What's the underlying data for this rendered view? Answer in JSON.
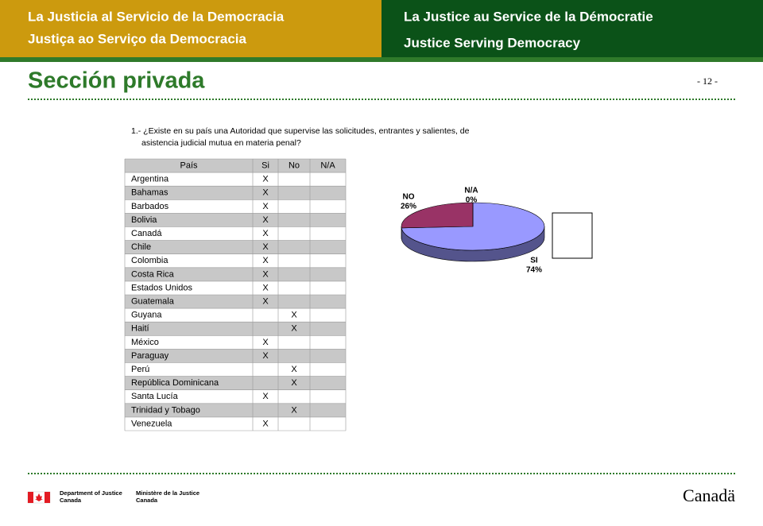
{
  "header": {
    "left": [
      "La Justicia al Servicio de la Democracia",
      "Justiça ao Serviço da Democracia"
    ],
    "right": [
      "La Justice au Service de la Démocratie",
      "Justice Serving Democracy"
    ]
  },
  "title": "Sección privada",
  "page_number": "- 12 -",
  "question": [
    "1.- ¿Existe en su país una Autoridad que supervise las solicitudes, entrantes y salientes, de",
    "asistencia judicial mutua en materia penal?"
  ],
  "table": {
    "columns": [
      "País",
      "Si",
      "No",
      "N/A"
    ],
    "rows": [
      [
        "Argentina",
        "X",
        null,
        null
      ],
      [
        "Bahamas",
        "X",
        null,
        null
      ],
      [
        "Barbados",
        "X",
        null,
        null
      ],
      [
        "Bolivia",
        "X",
        null,
        null
      ],
      [
        "Canadá",
        "X",
        null,
        null
      ],
      [
        "Chile",
        "X",
        null,
        null
      ],
      [
        "Colombia",
        "X",
        null,
        null
      ],
      [
        "Costa Rica",
        "X",
        null,
        null
      ],
      [
        "Estados Unidos",
        "X",
        null,
        null
      ],
      [
        "Guatemala",
        "X",
        null,
        null
      ],
      [
        "Guyana",
        null,
        "X",
        null
      ],
      [
        "Haití",
        null,
        "X",
        null
      ],
      [
        "México",
        "X",
        null,
        null
      ],
      [
        "Paraguay",
        "X",
        null,
        null
      ],
      [
        "Perú",
        null,
        "X",
        null
      ],
      [
        "República Dominicana",
        null,
        "X",
        null
      ],
      [
        "Santa Lucía",
        "X",
        null,
        null
      ],
      [
        "Trinidad y Tobago",
        null,
        "X",
        null
      ],
      [
        "Venezuela",
        "X",
        null,
        null
      ]
    ]
  },
  "chart_data": {
    "type": "pie",
    "categories": [
      "SI",
      "NO",
      "N/A"
    ],
    "values": [
      74,
      26,
      0
    ],
    "value_labels": [
      "74%",
      "26%",
      "0%"
    ],
    "colors": [
      "#9999ff",
      "#993366",
      "#ffffcc"
    ],
    "legend": "right"
  },
  "footer": {
    "department": [
      "Department of Justice",
      "Canada"
    ],
    "ministere": [
      "Ministère de la Justice",
      "Canada"
    ],
    "wordmark": "Canadä"
  }
}
